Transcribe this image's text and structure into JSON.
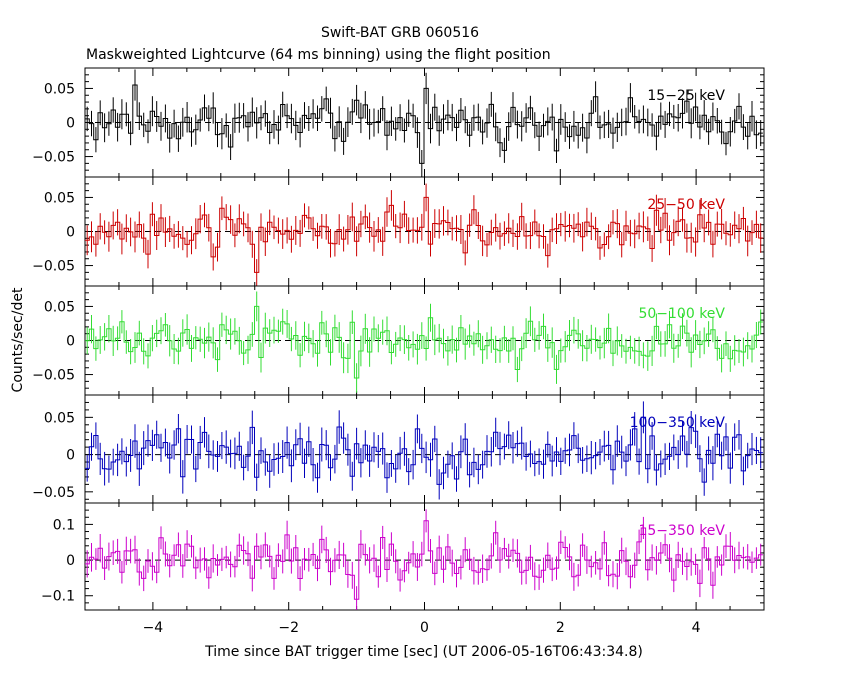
{
  "title": "Swift-BAT GRB 060516",
  "subtitle": "Maskweighted Lightcurve (64 ms binning) using the flight position",
  "ylabel": "Counts/sec/det",
  "xlabel": "Time since BAT trigger time [sec] (UT 2006-05-16T06:43:34.8)",
  "chart_data": {
    "type": "line",
    "subtype": "step lightcurve with error bars",
    "bin_width_s": 0.064,
    "x_range": [
      -5,
      5
    ],
    "x_ticks": [
      -4,
      -2,
      0,
      2,
      4
    ],
    "x_tick_labels": [
      "−4",
      "−2",
      "0",
      "2",
      "4"
    ],
    "panels": [
      {
        "name": "15-25 keV",
        "label": "15−25 keV",
        "color": "#000000",
        "ylim": [
          -0.08,
          0.08
        ],
        "y_ticks": [
          0.05,
          0,
          -0.05
        ],
        "y_tick_labels": [
          "0.05",
          "0",
          "−0.05"
        ],
        "noise_amplitude": 0.022,
        "error_bar": 0.02,
        "features": [
          {
            "t": -0.05,
            "v": -0.06
          },
          {
            "t": 0.05,
            "v": 0.05
          },
          {
            "t": -4.25,
            "v": 0.055
          }
        ]
      },
      {
        "name": "25-50 keV",
        "label": "25−50 keV",
        "color": "#cc0000",
        "ylim": [
          -0.08,
          0.08
        ],
        "y_ticks": [
          0.05,
          0,
          -0.05
        ],
        "y_tick_labels": [
          "0.05",
          "0",
          "−0.05"
        ],
        "noise_amplitude": 0.022,
        "error_bar": 0.02,
        "features": [
          {
            "t": 0.05,
            "v": 0.05
          },
          {
            "t": -2.45,
            "v": -0.06
          }
        ]
      },
      {
        "name": "50-100 keV",
        "label": "50−100 keV",
        "color": "#33dd33",
        "ylim": [
          -0.08,
          0.08
        ],
        "y_ticks": [
          0.05,
          0,
          -0.05
        ],
        "y_tick_labels": [
          "0.05",
          "0",
          "−0.05"
        ],
        "noise_amplitude": 0.022,
        "error_bar": 0.02,
        "features": [
          {
            "t": -2.45,
            "v": 0.05
          },
          {
            "t": -1.0,
            "v": -0.055
          }
        ]
      },
      {
        "name": "100-350 keV",
        "label": "100−350 keV",
        "color": "#0000bb",
        "ylim": [
          -0.065,
          0.08
        ],
        "y_ticks": [
          0.05,
          0,
          -0.05
        ],
        "y_tick_labels": [
          "0.05",
          "0",
          "−0.05"
        ],
        "noise_amplitude": 0.022,
        "error_bar": 0.02,
        "features": [
          {
            "t": 3.2,
            "v": 0.05
          },
          {
            "t": 0.2,
            "v": -0.04
          }
        ]
      },
      {
        "name": "15-350 keV",
        "label": "15−350 keV",
        "color": "#cc00cc",
        "ylim": [
          -0.14,
          0.16
        ],
        "y_ticks": [
          0.1,
          0,
          -0.1
        ],
        "y_tick_labels": [
          "0.1",
          "0",
          "−0.1"
        ],
        "noise_amplitude": 0.04,
        "error_bar": 0.035,
        "features": [
          {
            "t": 0.05,
            "v": 0.11
          },
          {
            "t": 3.2,
            "v": 0.09
          },
          {
            "t": -1.0,
            "v": -0.11
          }
        ]
      }
    ]
  }
}
